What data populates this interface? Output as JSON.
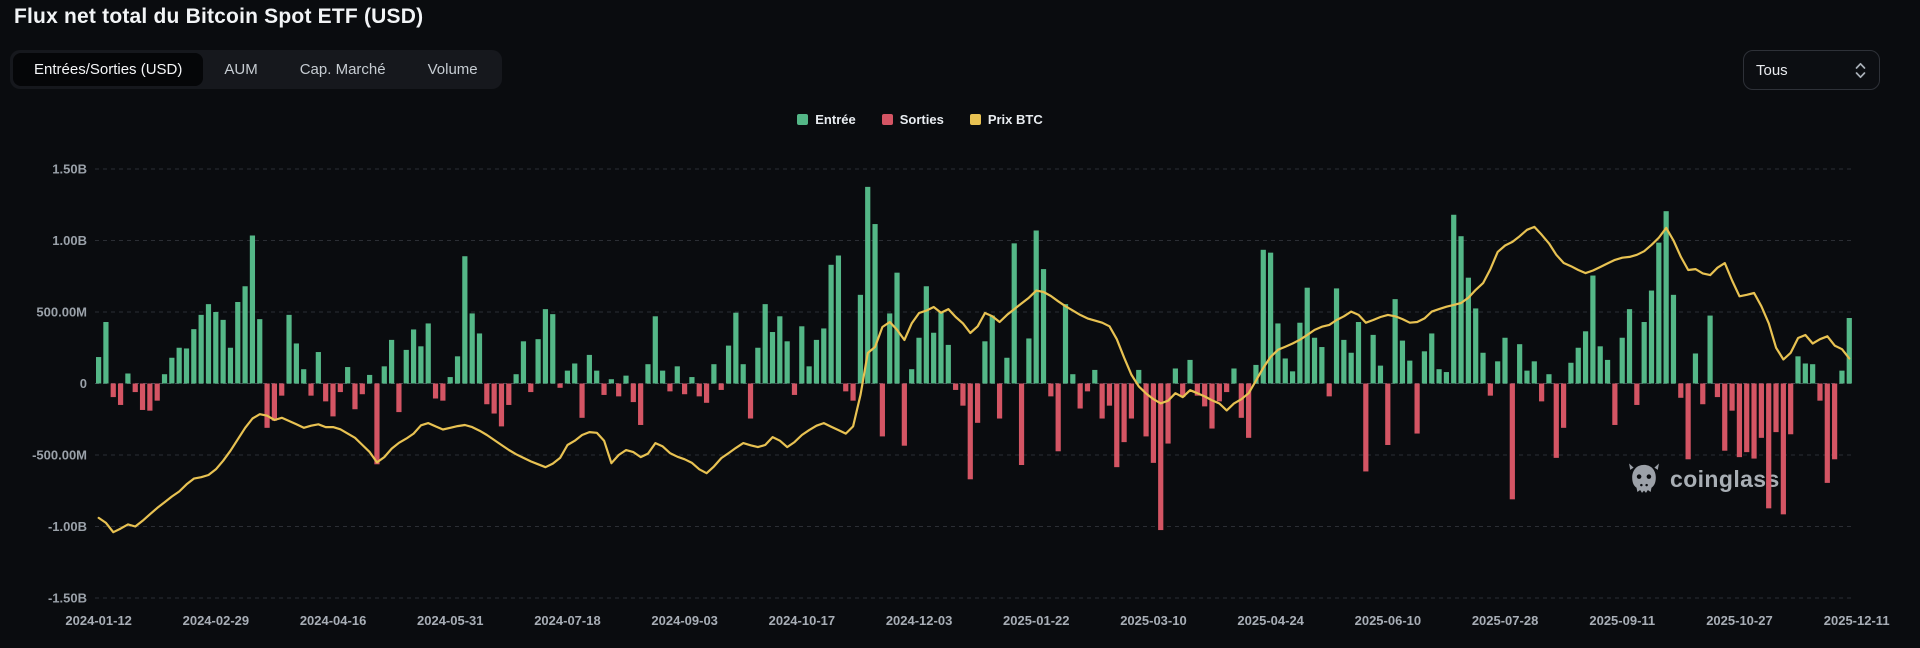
{
  "header": {
    "title": "Flux net total du Bitcoin Spot ETF (USD)"
  },
  "toolbar": {
    "tabs": [
      {
        "label": "Entrées/Sorties (USD)",
        "active": true
      },
      {
        "label": "AUM",
        "active": false
      },
      {
        "label": "Cap. Marché",
        "active": false
      },
      {
        "label": "Volume",
        "active": false
      }
    ],
    "range_select": {
      "value": "Tous"
    }
  },
  "legend": {
    "items": [
      {
        "label": "Entrée",
        "color": "#54b787"
      },
      {
        "label": "Sorties",
        "color": "#d45564"
      },
      {
        "label": "Prix BTC",
        "color": "#e8c252"
      }
    ]
  },
  "watermark": {
    "text": "coinglass",
    "icon": "coinglass-bull-icon"
  },
  "chart_data": {
    "type": "bar",
    "title": "Flux net total du Bitcoin Spot ETF (USD)",
    "units": "USD (left axis: millions; B = billions)",
    "date_range": [
      "2024-01-12",
      "2025-12-11"
    ],
    "resolution": "each bar ≈ 2 trading days, values estimated from pixels",
    "grid": "horizontal dashed",
    "legend_position": "top-center",
    "y_axis": {
      "tick_labels": [
        "1.50B",
        "1.00B",
        "500.00M",
        "0",
        "-500.00M",
        "-1.00B",
        "-1.50B"
      ],
      "tick_values_musd": [
        1500,
        1000,
        500,
        0,
        -500,
        -1000,
        -1500
      ],
      "ylim_musd": [
        -1500,
        1500
      ]
    },
    "x_axis": {
      "labels": [
        "2024-01-12",
        "2024-02-29",
        "2024-04-16",
        "2024-05-31",
        "2024-07-18",
        "2024-09-03",
        "2024-10-17",
        "2024-12-03",
        "2025-01-22",
        "2025-03-10",
        "2025-04-24",
        "2025-06-10",
        "2025-07-28",
        "2025-09-11",
        "2025-10-27",
        "2025-12-11"
      ]
    },
    "series": [
      {
        "name": "Entrée",
        "type": "bar",
        "role": "positive-flows",
        "color": "#54b787"
      },
      {
        "name": "Sorties",
        "type": "bar",
        "role": "negative-flows",
        "color": "#d45564"
      },
      {
        "name": "Prix BTC",
        "type": "line",
        "role": "price-overlay",
        "color": "#e8c252",
        "note": "price axis hidden; line digitized in left-axis millions"
      }
    ],
    "net_flow_musd": [
      185,
      430,
      -95,
      -150,
      70,
      -60,
      -185,
      -190,
      -120,
      65,
      180,
      250,
      245,
      380,
      480,
      555,
      500,
      445,
      250,
      570,
      680,
      1035,
      450,
      -310,
      -260,
      -85,
      480,
      280,
      100,
      -85,
      220,
      -125,
      -230,
      -60,
      115,
      -180,
      -75,
      60,
      -565,
      120,
      305,
      -200,
      235,
      378,
      260,
      420,
      -105,
      -120,
      45,
      190,
      890,
      490,
      350,
      -145,
      -210,
      -300,
      -150,
      65,
      295,
      -60,
      310,
      520,
      485,
      -30,
      90,
      140,
      -240,
      200,
      90,
      -80,
      30,
      -90,
      55,
      -130,
      -290,
      135,
      470,
      90,
      -55,
      120,
      -75,
      45,
      -90,
      -135,
      135,
      -45,
      265,
      495,
      135,
      -245,
      250,
      555,
      360,
      470,
      295,
      -80,
      400,
      120,
      305,
      385,
      830,
      895,
      -55,
      -120,
      620,
      1375,
      1115,
      -370,
      490,
      775,
      -435,
      100,
      320,
      680,
      355,
      500,
      270,
      -45,
      -155,
      -670,
      -275,
      295,
      475,
      -245,
      180,
      980,
      -570,
      315,
      1070,
      800,
      -90,
      -474,
      555,
      65,
      -175,
      -55,
      95,
      -245,
      -155,
      -585,
      -410,
      -245,
      95,
      -370,
      -555,
      -1025,
      -420,
      105,
      -95,
      165,
      -85,
      -160,
      -315,
      -125,
      -60,
      105,
      -240,
      -380,
      130,
      935,
      915,
      420,
      175,
      85,
      425,
      670,
      320,
      255,
      -90,
      665,
      305,
      215,
      430,
      -615,
      340,
      125,
      -430,
      590,
      300,
      160,
      -350,
      225,
      350,
      100,
      80,
      1180,
      1030,
      740,
      525,
      215,
      -85,
      155,
      320,
      -810,
      275,
      90,
      155,
      -125,
      65,
      -520,
      -310,
      145,
      250,
      365,
      755,
      260,
      165,
      -290,
      320,
      520,
      -150,
      430,
      650,
      985,
      1205,
      620,
      -100,
      -530,
      210,
      -145,
      475,
      -95,
      -470,
      -190,
      -515,
      -480,
      -525,
      -380,
      -873,
      -340,
      -915,
      -355,
      190,
      140,
      135,
      -120,
      -695,
      -530,
      90,
      458
    ],
    "price_line_musd": [
      -940,
      -975,
      -1040,
      -1015,
      -985,
      -1000,
      -960,
      -915,
      -870,
      -830,
      -790,
      -755,
      -705,
      -665,
      -655,
      -640,
      -600,
      -540,
      -470,
      -390,
      -310,
      -245,
      -215,
      -225,
      -255,
      -240,
      -262,
      -285,
      -310,
      -295,
      -285,
      -305,
      -305,
      -320,
      -350,
      -380,
      -430,
      -480,
      -552,
      -515,
      -455,
      -415,
      -385,
      -350,
      -292,
      -277,
      -300,
      -322,
      -310,
      -298,
      -290,
      -305,
      -330,
      -360,
      -395,
      -430,
      -465,
      -495,
      -520,
      -545,
      -565,
      -585,
      -560,
      -520,
      -430,
      -400,
      -360,
      -340,
      -345,
      -400,
      -557,
      -500,
      -466,
      -480,
      -515,
      -490,
      -417,
      -440,
      -487,
      -512,
      -530,
      -555,
      -600,
      -627,
      -580,
      -522,
      -487,
      -450,
      -417,
      -432,
      -445,
      -430,
      -375,
      -400,
      -445,
      -410,
      -360,
      -326,
      -295,
      -277,
      -302,
      -326,
      -350,
      -300,
      -80,
      213,
      256,
      395,
      430,
      375,
      304,
      420,
      493,
      510,
      535,
      495,
      520,
      465,
      420,
      353,
      400,
      493,
      470,
      430,
      480,
      520,
      560,
      600,
      650,
      640,
      612,
      575,
      540,
      510,
      480,
      455,
      440,
      425,
      400,
      310,
      180,
      60,
      -20,
      -70,
      -110,
      -139,
      -120,
      -68,
      -95,
      -47,
      -68,
      -90,
      -118,
      -140,
      -188,
      -139,
      -110,
      -68,
      20,
      110,
      187,
      236,
      257,
      280,
      306,
      340,
      375,
      397,
      410,
      444,
      470,
      503,
      480,
      425,
      444,
      465,
      480,
      470,
      450,
      425,
      430,
      455,
      503,
      520,
      537,
      550,
      563,
      600,
      655,
      702,
      800,
      920,
      965,
      990,
      1030,
      1075,
      1095,
      1040,
      980,
      900,
      843,
      820,
      794,
      772,
      790,
      815,
      840,
      864,
      880,
      885,
      900,
      925,
      970,
      1020,
      1088,
      1000,
      885,
      794,
      800,
      770,
      758,
      810,
      842,
      720,
      610,
      620,
      633,
      540,
      420,
      250,
      168,
      215,
      318,
      339,
      280,
      310,
      330,
      265,
      240,
      175
    ]
  }
}
